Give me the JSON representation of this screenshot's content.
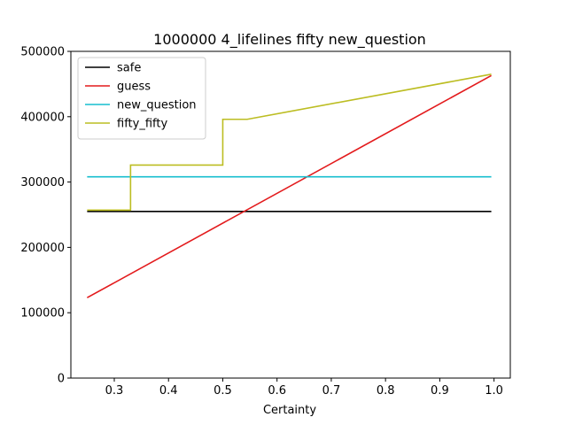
{
  "chart_data": {
    "type": "line",
    "title": "1000000 4_lifelines fifty new_question",
    "xlabel": "Certainty",
    "ylabel": "",
    "xlim": [
      0.22,
      1.03
    ],
    "ylim": [
      0,
      500000
    ],
    "xticks": [
      0.3,
      0.4,
      0.5,
      0.6,
      0.7,
      0.8,
      0.9,
      1.0
    ],
    "xtick_labels": [
      "0.3",
      "0.4",
      "0.5",
      "0.6",
      "0.7",
      "0.8",
      "0.9",
      "1.0"
    ],
    "yticks": [
      0,
      100000,
      200000,
      300000,
      400000,
      500000
    ],
    "ytick_labels": [
      "0",
      "100000",
      "200000",
      "300000",
      "400000",
      "500000"
    ],
    "grid": false,
    "legend_position": "upper-left",
    "series": [
      {
        "name": "safe",
        "color": "#000000",
        "x": [
          0.25,
          0.995
        ],
        "y": [
          255000,
          255000
        ]
      },
      {
        "name": "guess",
        "color": "#e31a1c",
        "x": [
          0.25,
          0.995
        ],
        "y": [
          123000,
          463000
        ]
      },
      {
        "name": "new_question",
        "color": "#17becf",
        "x": [
          0.25,
          0.995
        ],
        "y": [
          308000,
          308000
        ]
      },
      {
        "name": "fifty_fifty",
        "color": "#bcbd22",
        "x": [
          0.25,
          0.33,
          0.33,
          0.5,
          0.5,
          0.545,
          0.995
        ],
        "y": [
          257000,
          257000,
          326000,
          326000,
          396000,
          396000,
          465000
        ]
      }
    ]
  }
}
